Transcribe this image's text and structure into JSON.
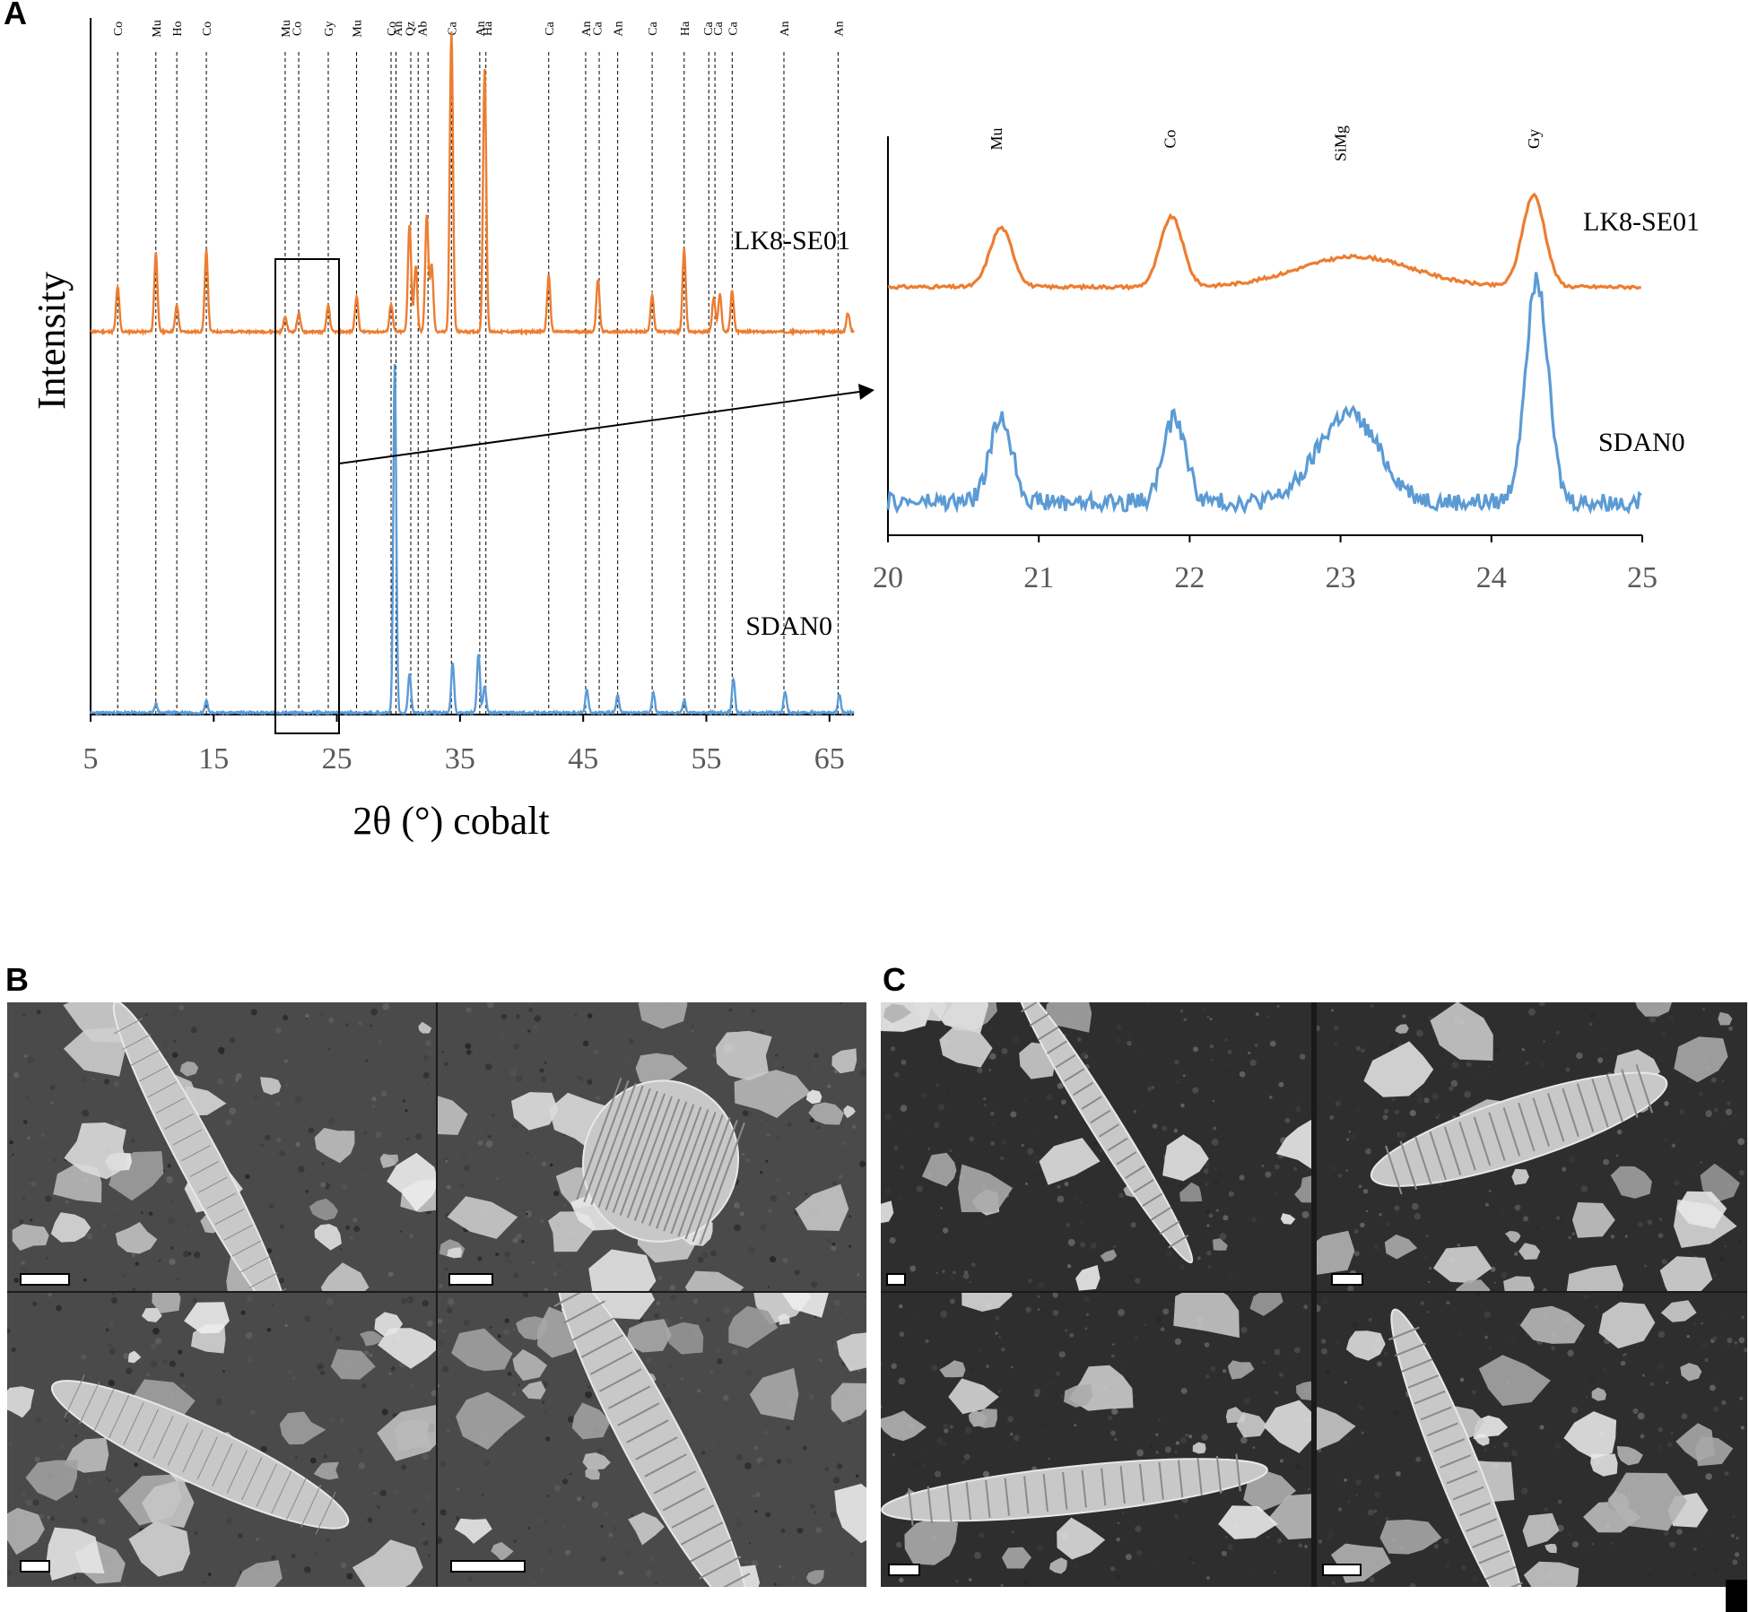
{
  "panels": {
    "a": "A",
    "b": "B",
    "c": "C"
  },
  "main_chart": {
    "ylabel": "Intensity",
    "xlabel": "2θ (°) cobalt",
    "x_ticks": [
      "5",
      "15",
      "25",
      "35",
      "45",
      "55",
      "65"
    ],
    "series_labels": {
      "top": "LK8-SE01",
      "bottom": "SDAN0"
    },
    "phase_labels": [
      "Co",
      "Mu",
      "Ho",
      "Co",
      "Mu",
      "Co",
      "Gy",
      "Mu",
      "Co",
      "An",
      "Qz",
      "Ab",
      "Ca",
      "An",
      "Ha",
      "Ca",
      "An",
      "Ca",
      "An",
      "Ca",
      "Ha",
      "Ca",
      "Ca",
      "Ca",
      "An",
      "An"
    ]
  },
  "inset_chart": {
    "x_ticks": [
      "20",
      "21",
      "22",
      "23",
      "24",
      "25"
    ],
    "series_labels": {
      "top": "LK8-SE01",
      "bottom": "SDAN0"
    },
    "phase_labels": [
      "Mu",
      "Co",
      "SiMg",
      "Gy"
    ]
  },
  "colors": {
    "orange": "#ED7D31",
    "blue": "#5B9BD5",
    "axis": "#000000"
  },
  "chart_data": [
    {
      "type": "line",
      "xlabel": "2θ (°) cobalt",
      "ylabel": "Intensity",
      "xlim": [
        5,
        67
      ],
      "series": [
        {
          "name": "LK8-SE01",
          "color": "#ED7D31",
          "peaks": [
            [
              7.2,
              0.24
            ],
            [
              10.3,
              0.42
            ],
            [
              12,
              0.14
            ],
            [
              14.4,
              0.43
            ],
            [
              20.8,
              0.08
            ],
            [
              21.9,
              0.1
            ],
            [
              24.3,
              0.14
            ],
            [
              26.6,
              0.19
            ],
            [
              29.4,
              0.15
            ],
            [
              30.9,
              0.57
            ],
            [
              31.4,
              0.35
            ],
            [
              32.3,
              0.62
            ],
            [
              32.7,
              0.35
            ],
            [
              34.3,
              1.6
            ],
            [
              37.0,
              1.4
            ],
            [
              42.2,
              0.3
            ],
            [
              46.2,
              0.28
            ],
            [
              50.6,
              0.2
            ],
            [
              53.2,
              0.44
            ],
            [
              55.6,
              0.18
            ],
            [
              56.1,
              0.2
            ],
            [
              57.1,
              0.22
            ],
            [
              66.5,
              0.1
            ]
          ]
        },
        {
          "name": "SDAN0",
          "color": "#5B9BD5",
          "peaks": [
            [
              10.3,
              0.05
            ],
            [
              14.4,
              0.07
            ],
            [
              29.7,
              1.95
            ],
            [
              30.9,
              0.22
            ],
            [
              34.4,
              0.28
            ],
            [
              36.5,
              0.33
            ],
            [
              37.0,
              0.15
            ],
            [
              45.3,
              0.13
            ],
            [
              47.8,
              0.1
            ],
            [
              50.7,
              0.11
            ],
            [
              53.2,
              0.07
            ],
            [
              57.2,
              0.19
            ],
            [
              61.4,
              0.12
            ],
            [
              65.8,
              0.1
            ]
          ]
        }
      ]
    },
    {
      "type": "line",
      "xlim": [
        20,
        25
      ],
      "series": [
        {
          "name": "LK8-SE01",
          "color": "#ED7D31",
          "peaks": [
            [
              20.75,
              0.55
            ],
            [
              21.88,
              0.65
            ],
            [
              23.1,
              0.28
            ],
            [
              24.28,
              0.85
            ]
          ]
        },
        {
          "name": "SDAN0",
          "color": "#5B9BD5",
          "peaks": [
            [
              20.75,
              0.55
            ],
            [
              21.9,
              0.55
            ],
            [
              23.05,
              0.58
            ],
            [
              24.3,
              1.45
            ]
          ]
        }
      ]
    }
  ]
}
